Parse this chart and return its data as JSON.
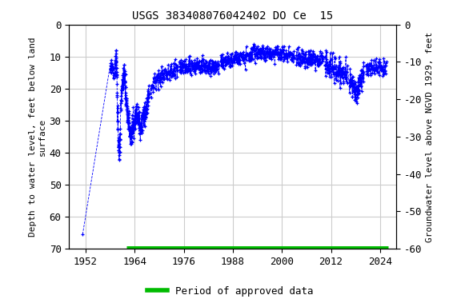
{
  "title": "USGS 383408076042402 DO Ce  15",
  "ylabel_left": "Depth to water level, feet below land\nsurface",
  "ylabel_right": "Groundwater level above NGVD 1929, feet",
  "xlim": [
    1948,
    2028
  ],
  "ylim_left_bottom": 70,
  "ylim_left_top": 0,
  "yticks_left": [
    0,
    10,
    20,
    30,
    40,
    50,
    60,
    70
  ],
  "yticks_right": [
    0,
    -10,
    -20,
    -30,
    -40,
    -50,
    -60
  ],
  "xticks": [
    1952,
    1964,
    1976,
    1988,
    2000,
    2012,
    2024
  ],
  "background_color": "#ffffff",
  "plot_bg_color": "#ffffff",
  "grid_color": "#cccccc",
  "data_color": "#0000ff",
  "approved_color": "#00bb00",
  "legend_label": "Period of approved data",
  "title_fontsize": 10,
  "axis_label_fontsize": 8,
  "tick_fontsize": 9,
  "approved_bar_y": 70,
  "approved_start": 1962.0,
  "approved_end": 2026.0
}
